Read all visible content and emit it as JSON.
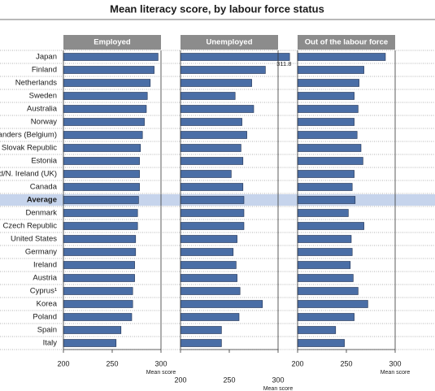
{
  "chart_data": {
    "type": "bar",
    "orientation": "horizontal",
    "layout": "panels",
    "title": "Mean literacy score, by labour force status",
    "categories": [
      "Japan",
      "Finland",
      "Netherlands",
      "Sweden",
      "Australia",
      "Norway",
      "landers (Belgium)",
      "Slovak Republic",
      "Estonia",
      "d/N. Ireland (UK)",
      "Canada",
      "Average",
      "Denmark",
      "Czech Republic",
      "United States",
      "Germany",
      "Ireland",
      "Austria",
      "Cyprus¹",
      "Korea",
      "Poland",
      "Spain",
      "Italy"
    ],
    "highlight_category": "Average",
    "highlight_color": "#c6d4ec",
    "series": [
      {
        "name": "Employed",
        "color": "#4a6ea6",
        "values": [
          297,
          293,
          289,
          286,
          285,
          283,
          281,
          279,
          278,
          278,
          278,
          277,
          276,
          276,
          274,
          274,
          273,
          273,
          271,
          271,
          270,
          259,
          254
        ]
      },
      {
        "name": "Unemployed",
        "color": "#4a6ea6",
        "values": [
          311.8,
          287,
          273,
          256,
          275,
          263,
          268,
          262,
          264,
          252,
          264,
          265,
          265,
          265,
          258,
          254,
          257,
          258,
          261,
          284,
          260,
          242,
          242
        ]
      },
      {
        "name": "Out of the labour force",
        "color": "#4a6ea6",
        "values": [
          290,
          268,
          263,
          258,
          262,
          258,
          261,
          265,
          267,
          258,
          256,
          259,
          252,
          268,
          255,
          256,
          254,
          257,
          262,
          272,
          258,
          239,
          248
        ]
      }
    ],
    "xlim": [
      200,
      300
    ],
    "xticks": [
      200,
      250,
      300
    ],
    "x_label": "Mean score"
  }
}
